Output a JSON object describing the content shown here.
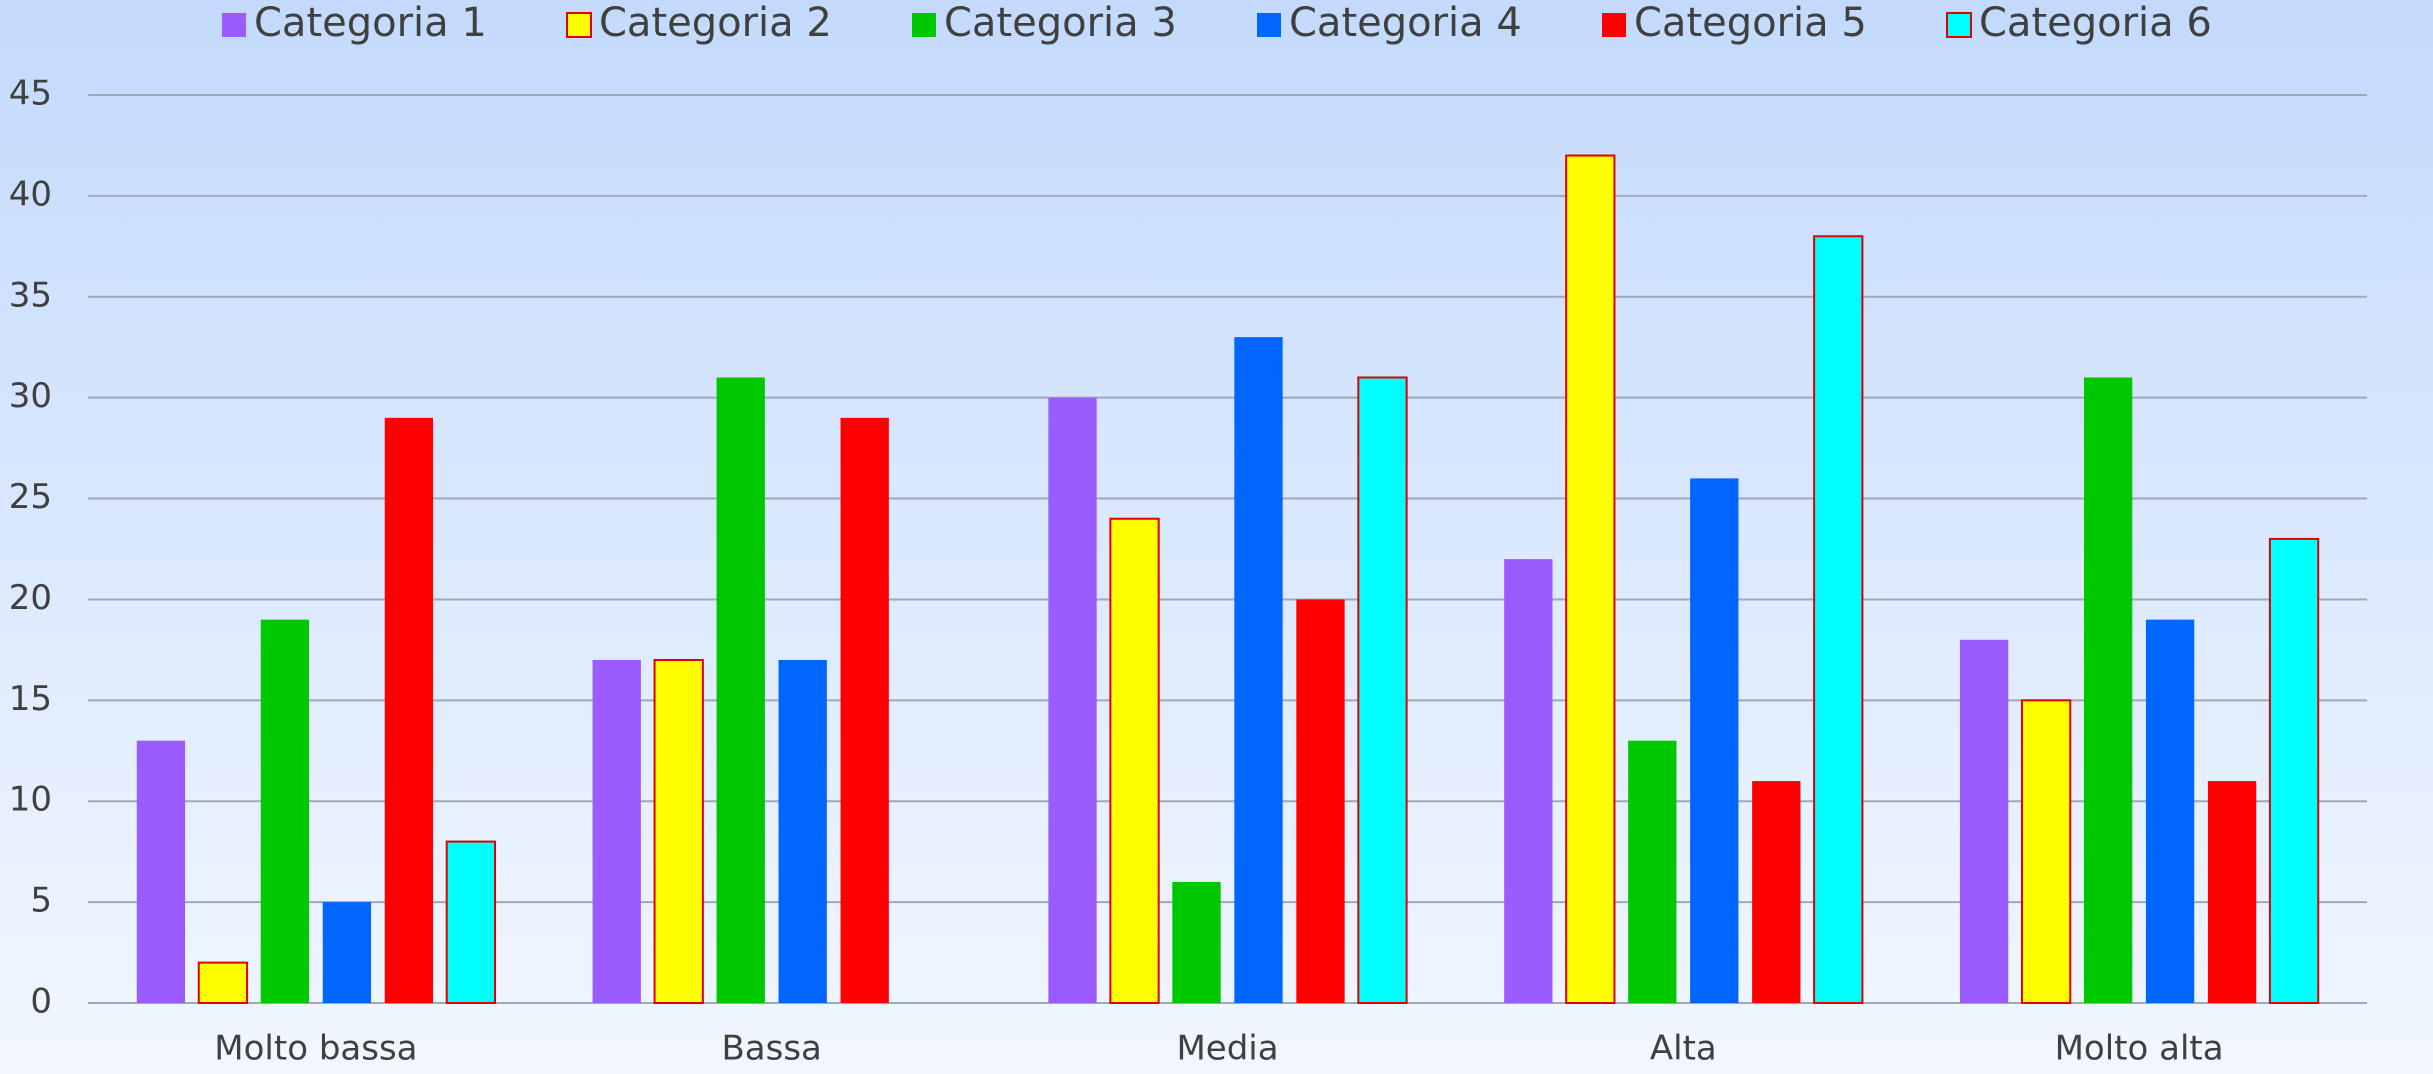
{
  "chart_data": {
    "type": "bar",
    "categories": [
      "Molto bassa",
      "Bassa",
      "Media",
      "Alta",
      "Molto alta"
    ],
    "series": [
      {
        "name": "Categoria 1",
        "color": "#9b5cff",
        "values": [
          13,
          17,
          30,
          22,
          18
        ]
      },
      {
        "name": "Categoria 2",
        "color": "#ffff00",
        "edgecolor": "#e00000",
        "values": [
          2,
          17,
          24,
          42,
          15
        ]
      },
      {
        "name": "Categoria 3",
        "color": "#00c800",
        "values": [
          19,
          31,
          6,
          13,
          31
        ]
      },
      {
        "name": "Categoria 4",
        "color": "#0066ff",
        "values": [
          5,
          17,
          33,
          26,
          19
        ]
      },
      {
        "name": "Categoria 5",
        "color": "#ff0000",
        "values": [
          29,
          29,
          20,
          11,
          11
        ]
      },
      {
        "name": "Categoria 6",
        "color": "#00ffff",
        "edgecolor": "#e00000",
        "values": [
          8,
          null,
          31,
          38,
          23
        ]
      }
    ],
    "ylim": [
      0,
      45
    ],
    "yticks": [
      0,
      5,
      10,
      15,
      20,
      25,
      30,
      35,
      40,
      45
    ],
    "grid": true,
    "legend": "top"
  }
}
